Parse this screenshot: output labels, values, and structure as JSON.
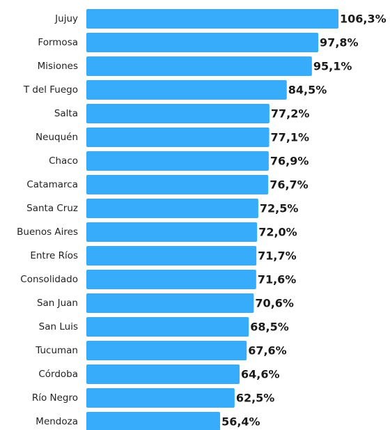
{
  "chart_data": {
    "type": "bar",
    "orientation": "horizontal",
    "color": "#36acfb",
    "categories": [
      "Jujuy",
      "Formosa",
      "Misiones",
      "T del Fuego",
      "Salta",
      "Neuquén",
      "Chaco",
      "Catamarca",
      "Santa Cruz",
      "Buenos Aires",
      "Entre Ríos",
      "Consolidado",
      "San Juan",
      "San Luis",
      "Tucuman",
      "Córdoba",
      "Río Negro",
      "Mendoza"
    ],
    "values": [
      106.3,
      97.8,
      95.1,
      84.5,
      77.2,
      77.1,
      76.9,
      76.7,
      72.5,
      72.0,
      71.7,
      71.6,
      70.6,
      68.5,
      67.6,
      64.6,
      62.5,
      56.4
    ],
    "value_labels": [
      "106,3%",
      "97,8%",
      "95,1%",
      "84,5%",
      "77,2%",
      "77,1%",
      "76,9%",
      "76,7%",
      "72,5%",
      "72,0%",
      "71,7%",
      "71,6%",
      "70,6%",
      "68,5%",
      "67,6%",
      "64,6%",
      "62,5%",
      "56,4%"
    ]
  }
}
